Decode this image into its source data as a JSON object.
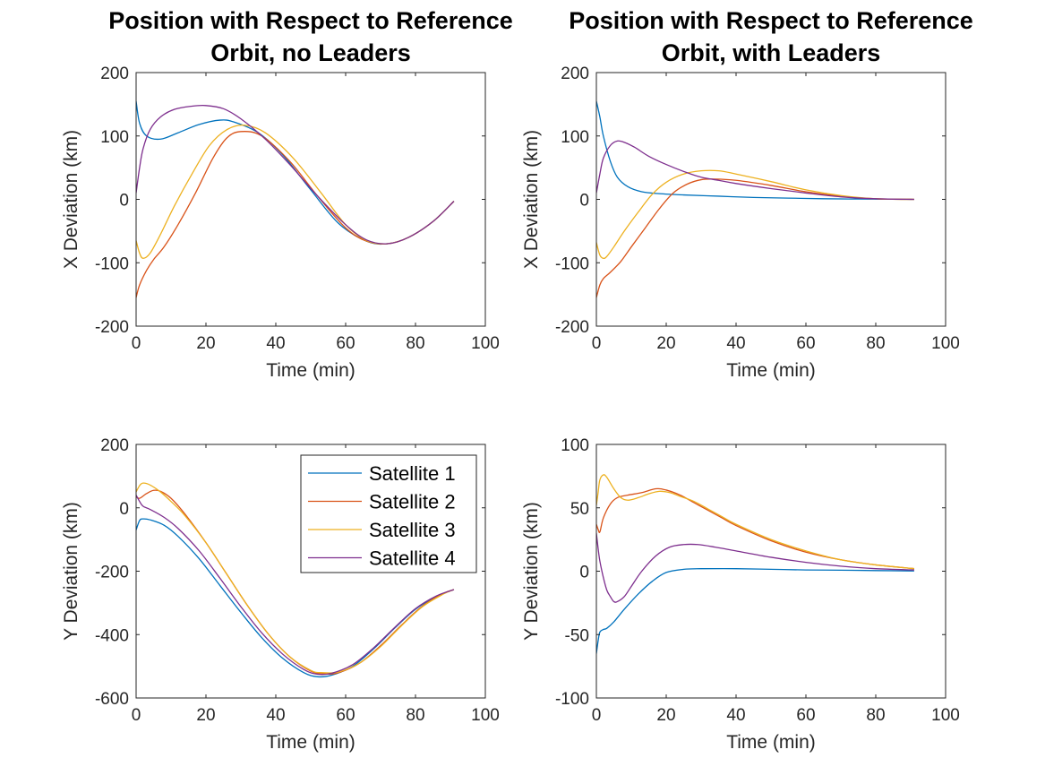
{
  "chart_data": [
    {
      "type": "line",
      "title_lines": [
        "Position with Respect to Reference",
        "Orbit, no Leaders"
      ],
      "xlabel": "Time (min)",
      "ylabel": "X Deviation (km)",
      "xlim": [
        0,
        100
      ],
      "ylim": [
        -200,
        200
      ],
      "xticks": [
        0,
        20,
        40,
        60,
        80,
        100
      ],
      "yticks": [
        -200,
        -100,
        0,
        100,
        200
      ],
      "grid": false,
      "series": [
        {
          "color": "#0072BD",
          "x": [
            0,
            1,
            3,
            7,
            12,
            18,
            24,
            28,
            35,
            42,
            50,
            58,
            66,
            72,
            78,
            85,
            91
          ],
          "y": [
            155,
            120,
            100,
            95,
            105,
            118,
            125,
            122,
            105,
            70,
            15,
            -38,
            -66,
            -70,
            -60,
            -35,
            -3
          ]
        },
        {
          "color": "#D95319",
          "x": [
            0,
            1,
            3,
            5,
            8,
            12,
            17,
            22,
            26,
            30,
            36,
            44,
            52,
            60,
            66,
            72,
            78,
            85,
            91
          ],
          "y": [
            -155,
            -135,
            -112,
            -95,
            -75,
            -40,
            10,
            65,
            97,
            107,
            100,
            60,
            5,
            -45,
            -66,
            -70,
            -60,
            -35,
            -3
          ]
        },
        {
          "color": "#EDB120",
          "x": [
            0,
            1,
            2,
            4,
            7,
            11,
            16,
            21,
            26,
            31,
            37,
            45,
            53,
            60,
            66,
            72,
            78,
            85,
            91
          ],
          "y": [
            -65,
            -85,
            -93,
            -85,
            -55,
            -10,
            40,
            85,
            110,
            117,
            105,
            65,
            10,
            -40,
            -65,
            -70,
            -60,
            -35,
            -3
          ]
        },
        {
          "color": "#7E2F8E",
          "x": [
            0,
            1,
            2,
            4,
            7,
            11,
            16,
            20,
            25,
            30,
            37,
            44,
            52,
            60,
            66,
            72,
            78,
            85,
            91
          ],
          "y": [
            10,
            50,
            80,
            110,
            130,
            142,
            147,
            148,
            143,
            127,
            95,
            55,
            5,
            -40,
            -64,
            -70,
            -60,
            -35,
            -3
          ]
        }
      ]
    },
    {
      "type": "line",
      "title_lines": [
        "Position with Respect to Reference",
        "Orbit, with Leaders"
      ],
      "xlabel": "Time (min)",
      "ylabel": "X Deviation (km)",
      "xlim": [
        0,
        100
      ],
      "ylim": [
        -200,
        200
      ],
      "xticks": [
        0,
        20,
        40,
        60,
        80,
        100
      ],
      "yticks": [
        -200,
        -100,
        0,
        100,
        200
      ],
      "grid": false,
      "series": [
        {
          "color": "#0072BD",
          "x": [
            0,
            1,
            2,
            4,
            6,
            9,
            13,
            18,
            25,
            35,
            45,
            55,
            65,
            75,
            85,
            91
          ],
          "y": [
            155,
            130,
            100,
            60,
            35,
            20,
            12,
            9,
            7,
            5,
            3,
            2,
            1,
            0.5,
            0.2,
            0
          ]
        },
        {
          "color": "#D95319",
          "x": [
            0,
            1,
            2,
            4,
            7,
            10,
            14,
            18,
            22,
            26,
            30,
            34,
            40,
            50,
            60,
            70,
            80,
            91
          ],
          "y": [
            -155,
            -135,
            -125,
            -115,
            -98,
            -75,
            -45,
            -15,
            10,
            24,
            31,
            32,
            30,
            22,
            12,
            5,
            1,
            0
          ]
        },
        {
          "color": "#EDB120",
          "x": [
            0,
            1,
            2,
            3,
            5,
            8,
            12,
            16,
            20,
            25,
            30,
            35,
            40,
            50,
            60,
            70,
            80,
            91
          ],
          "y": [
            -68,
            -88,
            -93,
            -90,
            -75,
            -50,
            -20,
            8,
            27,
            40,
            45,
            45,
            40,
            28,
            15,
            6,
            1,
            0
          ]
        },
        {
          "color": "#7E2F8E",
          "x": [
            0,
            1,
            2,
            4,
            6,
            8,
            11,
            15,
            20,
            25,
            30,
            35,
            40,
            50,
            60,
            70,
            80,
            91
          ],
          "y": [
            10,
            40,
            65,
            85,
            92,
            90,
            82,
            68,
            55,
            44,
            35,
            30,
            25,
            17,
            10,
            4,
            1,
            0
          ]
        }
      ]
    },
    {
      "type": "line",
      "title_lines": [],
      "xlabel": "Time (min)",
      "ylabel": "Y Deviation (km)",
      "xlim": [
        0,
        100
      ],
      "ylim": [
        -600,
        200
      ],
      "xticks": [
        0,
        20,
        40,
        60,
        80,
        100
      ],
      "yticks": [
        -600,
        -400,
        -200,
        0,
        200
      ],
      "grid": false,
      "legend": {
        "placement": "top-right",
        "entries": [
          "Satellite 1",
          "Satellite 2",
          "Satellite 3",
          "Satellite 4"
        ]
      },
      "series": [
        {
          "color": "#0072BD",
          "x": [
            0,
            1,
            2,
            4,
            8,
            12,
            18,
            24,
            30,
            36,
            42,
            48,
            52,
            56,
            62,
            68,
            74,
            80,
            86,
            91
          ],
          "y": [
            -70,
            -40,
            -35,
            -38,
            -55,
            -90,
            -160,
            -245,
            -330,
            -410,
            -475,
            -520,
            -533,
            -528,
            -500,
            -445,
            -380,
            -320,
            -280,
            -258
          ]
        },
        {
          "color": "#D95319",
          "x": [
            0,
            1,
            3,
            5,
            7,
            10,
            14,
            20,
            26,
            32,
            38,
            44,
            50,
            54,
            58,
            64,
            70,
            76,
            82,
            88,
            91
          ],
          "y": [
            35,
            30,
            45,
            55,
            52,
            30,
            -20,
            -110,
            -210,
            -310,
            -400,
            -470,
            -515,
            -524,
            -520,
            -490,
            -435,
            -370,
            -310,
            -270,
            -258
          ]
        },
        {
          "color": "#EDB120",
          "x": [
            0,
            1,
            2,
            4,
            7,
            10,
            14,
            20,
            26,
            32,
            38,
            44,
            50,
            53,
            58,
            64,
            70,
            76,
            82,
            88,
            91
          ],
          "y": [
            50,
            70,
            78,
            72,
            50,
            20,
            -25,
            -110,
            -210,
            -310,
            -400,
            -470,
            -513,
            -520,
            -518,
            -490,
            -438,
            -372,
            -312,
            -272,
            -258
          ]
        },
        {
          "color": "#7E2F8E",
          "x": [
            0,
            1,
            2,
            4,
            8,
            12,
            18,
            24,
            30,
            36,
            42,
            48,
            52,
            56,
            62,
            68,
            74,
            80,
            86,
            91
          ],
          "y": [
            40,
            20,
            5,
            -5,
            -30,
            -65,
            -135,
            -222,
            -312,
            -395,
            -462,
            -510,
            -525,
            -522,
            -495,
            -442,
            -378,
            -318,
            -278,
            -258
          ]
        }
      ]
    },
    {
      "type": "line",
      "title_lines": [],
      "xlabel": "Time (min)",
      "ylabel": "Y Deviation (km)",
      "xlim": [
        0,
        100
      ],
      "ylim": [
        -100,
        100
      ],
      "xticks": [
        0,
        20,
        40,
        60,
        80,
        100
      ],
      "yticks": [
        -100,
        -50,
        0,
        50,
        100
      ],
      "grid": false,
      "series": [
        {
          "color": "#0072BD",
          "x": [
            0,
            0.5,
            1,
            2,
            3,
            5,
            8,
            12,
            16,
            20,
            25,
            30,
            40,
            50,
            60,
            70,
            80,
            91
          ],
          "y": [
            -65,
            -55,
            -48,
            -46,
            -45,
            -40,
            -30,
            -18,
            -8,
            -1,
            1.5,
            2,
            2,
            1.5,
            1,
            0.8,
            0.5,
            0.2
          ]
        },
        {
          "color": "#D95319",
          "x": [
            0,
            0.5,
            1,
            2,
            4,
            6,
            9,
            13,
            17,
            20,
            24,
            28,
            32,
            36,
            40,
            50,
            60,
            70,
            80,
            91
          ],
          "y": [
            37,
            33,
            31,
            42,
            53,
            58,
            60,
            62,
            65,
            64,
            60,
            54,
            48,
            42,
            36,
            24,
            15,
            9,
            5,
            2
          ]
        },
        {
          "color": "#EDB120",
          "x": [
            0,
            0.5,
            1,
            2,
            3,
            5,
            7,
            9,
            12,
            15,
            18,
            21,
            24,
            28,
            32,
            36,
            40,
            50,
            60,
            70,
            80,
            91
          ],
          "y": [
            52,
            62,
            72,
            76,
            74,
            65,
            58,
            56,
            58,
            61,
            63,
            62,
            59,
            55,
            49,
            43,
            37,
            25,
            16,
            9,
            5,
            2
          ]
        },
        {
          "color": "#7E2F8E",
          "x": [
            0,
            0.5,
            1,
            2,
            3,
            4,
            5,
            6,
            8,
            10,
            13,
            17,
            21,
            25,
            29,
            34,
            40,
            50,
            60,
            70,
            80,
            91
          ],
          "y": [
            30,
            18,
            8,
            -5,
            -15,
            -20,
            -24,
            -24,
            -20,
            -12,
            0,
            12,
            19,
            21,
            21,
            19,
            16,
            11,
            7,
            4,
            2,
            1
          ]
        }
      ]
    }
  ]
}
